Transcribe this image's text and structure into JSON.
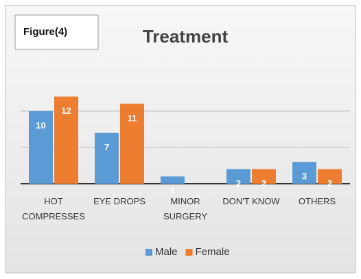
{
  "chart_data": {
    "type": "bar",
    "label": "Figure(4)",
    "title": "Treatment",
    "categories": [
      "HOT COMPRESSES",
      "EYE DROPS",
      "MINOR SURGERY",
      "DON'T KNOW",
      "OTHERS"
    ],
    "series": [
      {
        "name": "Male",
        "color": "#5b9bd5",
        "values": [
          10,
          7,
          1,
          2,
          3
        ]
      },
      {
        "name": "Female",
        "color": "#ed7d31",
        "values": [
          12,
          11,
          0,
          2,
          2
        ]
      }
    ],
    "ylim": [
      0,
      15
    ],
    "yticks": [
      0,
      5,
      10
    ],
    "grid": true,
    "legend": "bottom"
  }
}
